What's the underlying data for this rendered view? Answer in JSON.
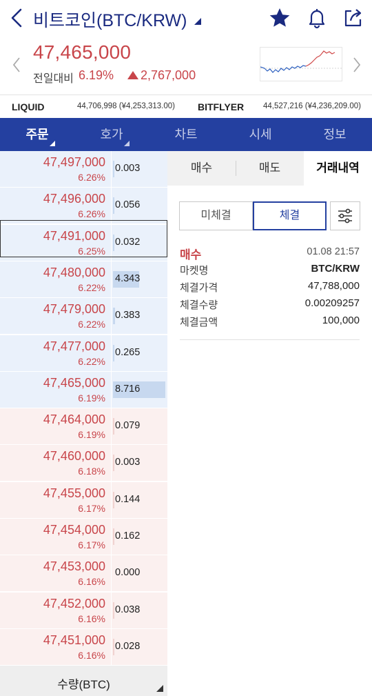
{
  "header": {
    "title": "비트코인(BTC/KRW)",
    "icons": [
      "back-arrow-icon",
      "star-icon",
      "bell-icon",
      "share-icon"
    ],
    "accent_color": "#1a2a80"
  },
  "price": {
    "current": "47,465,000",
    "compare_label": "전일대비",
    "change_pct": "6.19%",
    "change_amount": "2,767,000",
    "up_color": "#c8454a"
  },
  "exchanges": [
    {
      "name": "LIQUID",
      "value": "44,706,998 (¥4,253,313.00)"
    },
    {
      "name": "BITFLYER",
      "value": "44,527,216 (¥4,236,209.00)"
    }
  ],
  "tabs": [
    {
      "label": "주문",
      "active": true
    },
    {
      "label": "호가",
      "active": false
    },
    {
      "label": "차트",
      "active": false
    },
    {
      "label": "시세",
      "active": false
    },
    {
      "label": "정보",
      "active": false
    }
  ],
  "orderbook": {
    "rows": [
      {
        "side": "ask",
        "price": "47,497,000",
        "pct": "6.26%",
        "qty": "0.003",
        "fill": 0.0003
      },
      {
        "side": "ask",
        "price": "47,496,000",
        "pct": "6.26%",
        "qty": "0.056",
        "fill": 0.006
      },
      {
        "side": "ask",
        "price": "47,491,000",
        "pct": "6.25%",
        "qty": "0.032",
        "fill": 0.004
      },
      {
        "side": "ask",
        "price": "47,480,000",
        "pct": "6.22%",
        "qty": "4.343",
        "fill": 0.5
      },
      {
        "side": "ask",
        "price": "47,479,000",
        "pct": "6.22%",
        "qty": "0.383",
        "fill": 0.044
      },
      {
        "side": "ask",
        "price": "47,477,000",
        "pct": "6.22%",
        "qty": "0.265",
        "fill": 0.03
      },
      {
        "side": "ask",
        "price": "47,465,000",
        "pct": "6.19%",
        "qty": "8.716",
        "fill": 1.0,
        "current": true
      },
      {
        "side": "bid",
        "price": "47,464,000",
        "pct": "6.19%",
        "qty": "0.079",
        "fill": 0.009
      },
      {
        "side": "bid",
        "price": "47,460,000",
        "pct": "6.18%",
        "qty": "0.003",
        "fill": 0.0003
      },
      {
        "side": "bid",
        "price": "47,455,000",
        "pct": "6.17%",
        "qty": "0.144",
        "fill": 0.017
      },
      {
        "side": "bid",
        "price": "47,454,000",
        "pct": "6.17%",
        "qty": "0.162",
        "fill": 0.019
      },
      {
        "side": "bid",
        "price": "47,453,000",
        "pct": "6.16%",
        "qty": "0.000",
        "fill": 0
      },
      {
        "side": "bid",
        "price": "47,452,000",
        "pct": "6.16%",
        "qty": "0.038",
        "fill": 0.004
      },
      {
        "side": "bid",
        "price": "47,451,000",
        "pct": "6.16%",
        "qty": "0.028",
        "fill": 0.003
      }
    ],
    "footer_label": "수량(BTC)"
  },
  "order_panel": {
    "sub_tabs": [
      {
        "label": "매수",
        "active": false
      },
      {
        "label": "매도",
        "active": false
      },
      {
        "label": "거래내역",
        "active": true
      }
    ],
    "segments": {
      "unsettled": "미체결",
      "settled": "체결"
    },
    "trade": {
      "type": "매수",
      "time": "01.08 21:57",
      "details": [
        {
          "label": "마켓명",
          "value": "BTC/KRW",
          "bold": true
        },
        {
          "label": "체결가격",
          "value": "47,788,000",
          "bold": false
        },
        {
          "label": "체결수량",
          "value": "0.00209257",
          "bold": false
        },
        {
          "label": "체결금액",
          "value": "100,000",
          "bold": false
        }
      ]
    }
  }
}
